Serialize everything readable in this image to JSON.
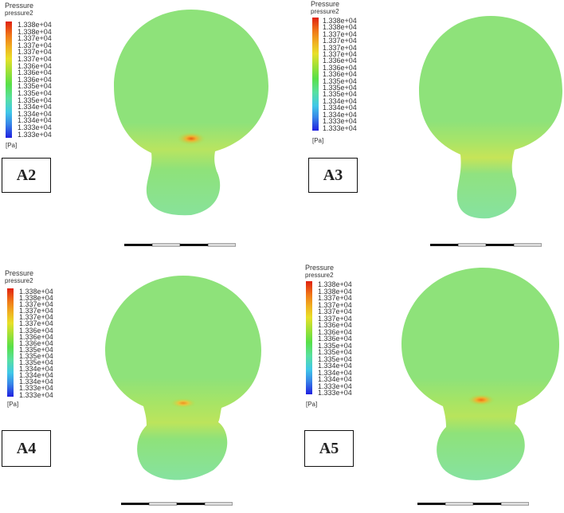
{
  "legend": {
    "title": "Pressure",
    "subtitle": "pressure2",
    "ticks": [
      "1.338e+04",
      "1.338e+04",
      "1.337e+04",
      "1.337e+04",
      "1.337e+04",
      "1.337e+04",
      "1.336e+04",
      "1.336e+04",
      "1.336e+04",
      "1.335e+04",
      "1.335e+04",
      "1.335e+04",
      "1.334e+04",
      "1.334e+04",
      "1.334e+04",
      "1.333e+04",
      "1.333e+04"
    ],
    "unit": "[Pa]"
  },
  "panels": [
    {
      "label": "A2"
    },
    {
      "label": "A3"
    },
    {
      "label": "A4"
    },
    {
      "label": "A5"
    }
  ],
  "colors": {
    "field": "#8ee27a",
    "hotspot": "#f08020"
  }
}
